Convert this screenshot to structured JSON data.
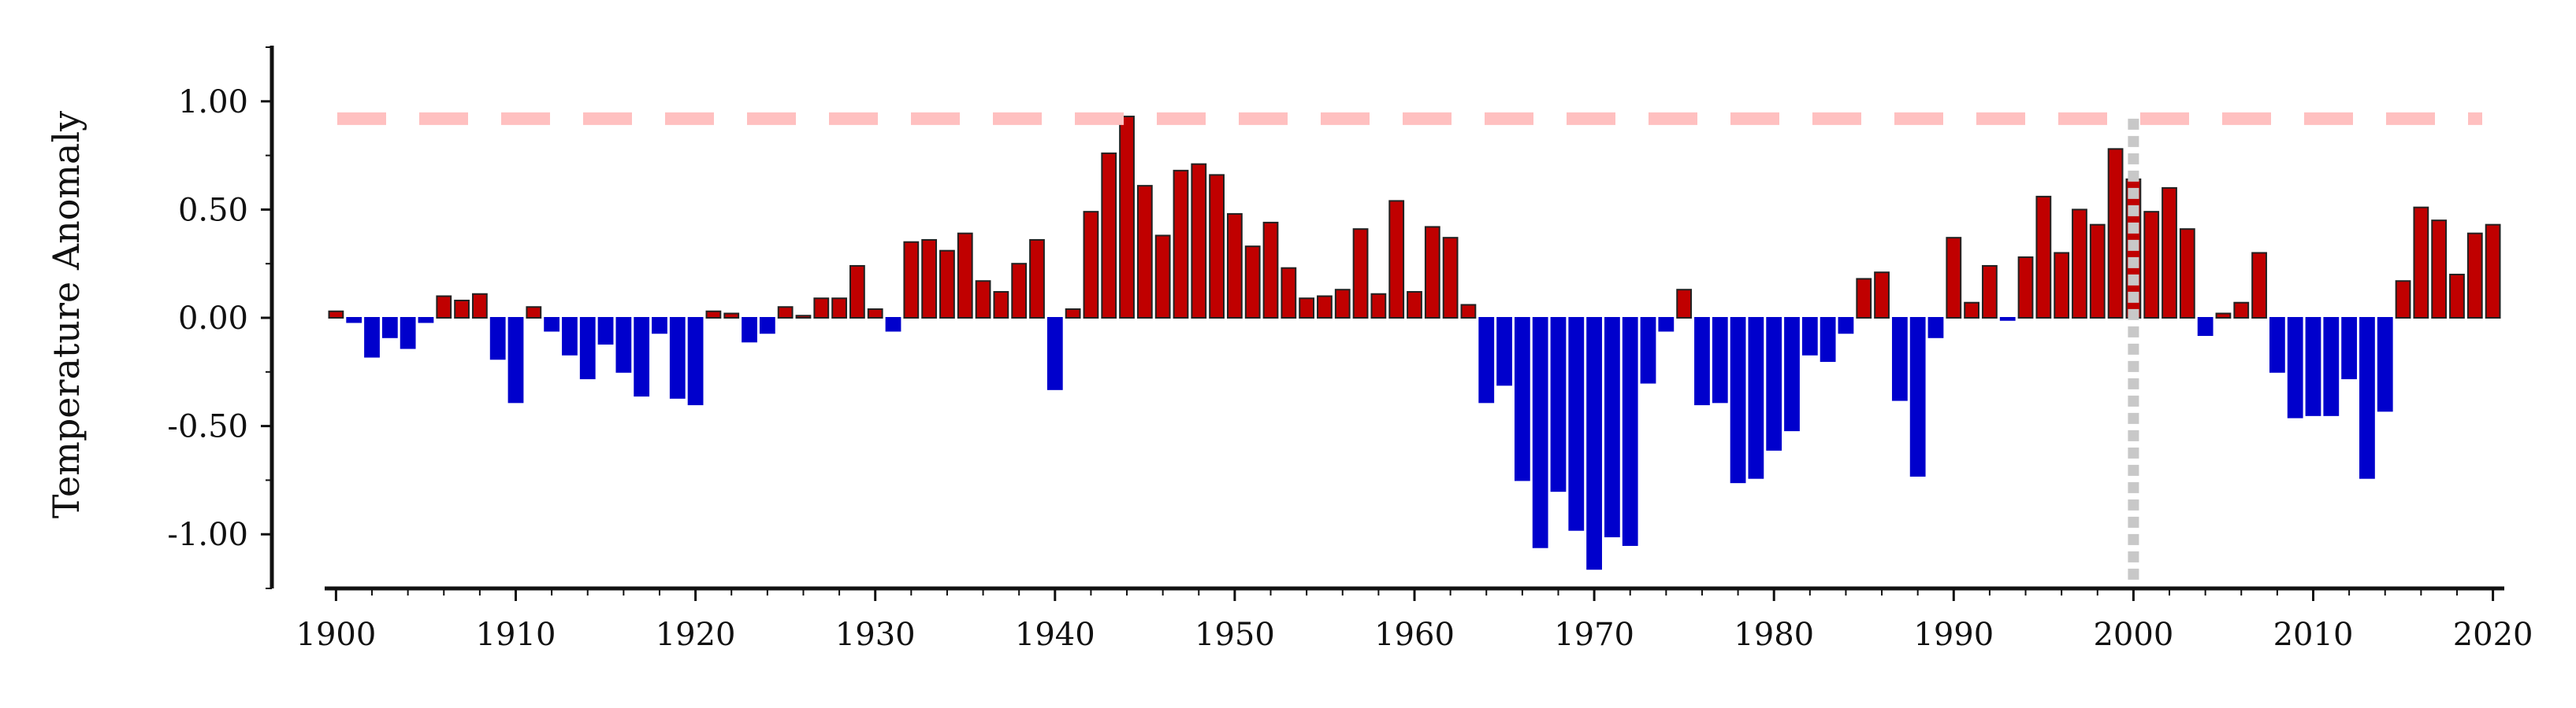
{
  "chart_data": {
    "type": "bar",
    "title": "",
    "xlabel": "",
    "ylabel": "Temperature Anomaly",
    "xlim": [
      1899.5,
      2020.5
    ],
    "ylim": [
      -1.25,
      1.25
    ],
    "x_ticks": [
      "1900",
      "1910",
      "1920",
      "1930",
      "1940",
      "1950",
      "1960",
      "1970",
      "1980",
      "1990",
      "2000",
      "2010",
      "2020"
    ],
    "y_ticks": [
      "1.00",
      "0.50",
      "0.00",
      "-0.50",
      "-1.00"
    ],
    "grid": false,
    "legend": "none",
    "colors": {
      "positive": "#c00000",
      "negative": "#0000cc",
      "bar_edge": "#222222",
      "threshold_line": "#ffc0c0",
      "marker_line": "#c8c8c8",
      "axis": "#111111"
    },
    "reference_lines": [
      {
        "orientation": "horizontal",
        "y": 0.92,
        "style": "dashed"
      },
      {
        "orientation": "vertical",
        "x": 2000,
        "style": "dotted"
      }
    ],
    "years": [
      1900,
      1901,
      1902,
      1903,
      1904,
      1905,
      1906,
      1907,
      1908,
      1909,
      1910,
      1911,
      1912,
      1913,
      1914,
      1915,
      1916,
      1917,
      1918,
      1919,
      1920,
      1921,
      1922,
      1923,
      1924,
      1925,
      1926,
      1927,
      1928,
      1929,
      1930,
      1931,
      1932,
      1933,
      1934,
      1935,
      1936,
      1937,
      1938,
      1939,
      1940,
      1941,
      1942,
      1943,
      1944,
      1945,
      1946,
      1947,
      1948,
      1949,
      1950,
      1951,
      1952,
      1953,
      1954,
      1955,
      1956,
      1957,
      1958,
      1959,
      1960,
      1961,
      1962,
      1963,
      1964,
      1965,
      1966,
      1967,
      1968,
      1969,
      1970,
      1971,
      1972,
      1973,
      1974,
      1975,
      1976,
      1977,
      1978,
      1979,
      1980,
      1981,
      1982,
      1983,
      1984,
      1985,
      1986,
      1987,
      1988,
      1989,
      1990,
      1991,
      1992,
      1993,
      1994,
      1995,
      1996,
      1997,
      1998,
      1999,
      2000,
      2001,
      2002,
      2003,
      2004,
      2005,
      2006,
      2007,
      2008,
      2009,
      2010,
      2011,
      2012,
      2013,
      2014,
      2015,
      2016,
      2017,
      2018,
      2019,
      2020
    ],
    "values": [
      0.03,
      -0.02,
      -0.18,
      -0.09,
      -0.14,
      -0.02,
      0.1,
      0.08,
      0.11,
      -0.19,
      -0.39,
      0.05,
      -0.06,
      -0.17,
      -0.28,
      -0.12,
      -0.25,
      -0.36,
      -0.07,
      -0.37,
      -0.4,
      0.03,
      0.02,
      -0.11,
      -0.07,
      0.05,
      0.01,
      0.09,
      0.09,
      0.24,
      0.04,
      -0.06,
      0.35,
      0.36,
      0.31,
      0.39,
      0.17,
      0.12,
      0.25,
      0.36,
      -0.33,
      0.04,
      0.49,
      0.76,
      0.93,
      0.61,
      0.38,
      0.68,
      0.71,
      0.66,
      0.48,
      0.33,
      0.44,
      0.23,
      0.09,
      0.1,
      0.13,
      0.41,
      0.11,
      0.54,
      0.12,
      0.42,
      0.37,
      0.06,
      -0.39,
      -0.31,
      -0.75,
      -1.06,
      -0.8,
      -0.98,
      -1.16,
      -1.01,
      -1.05,
      -0.3,
      -0.06,
      0.13,
      -0.4,
      -0.39,
      -0.76,
      -0.74,
      -0.61,
      -0.52,
      -0.17,
      -0.2,
      -0.07,
      0.18,
      0.21,
      -0.38,
      -0.73,
      -0.09,
      0.37,
      0.07,
      0.24,
      -0.01,
      0.28,
      0.56,
      0.3,
      0.5,
      0.43,
      0.78,
      0.64,
      0.49,
      0.6,
      0.41,
      -0.08,
      0.02,
      0.07,
      0.3,
      -0.25,
      -0.46,
      -0.45,
      -0.45,
      -0.28,
      -0.74,
      -0.43,
      0.17,
      0.51,
      0.45,
      0.2,
      0.39,
      0.43
    ]
  }
}
